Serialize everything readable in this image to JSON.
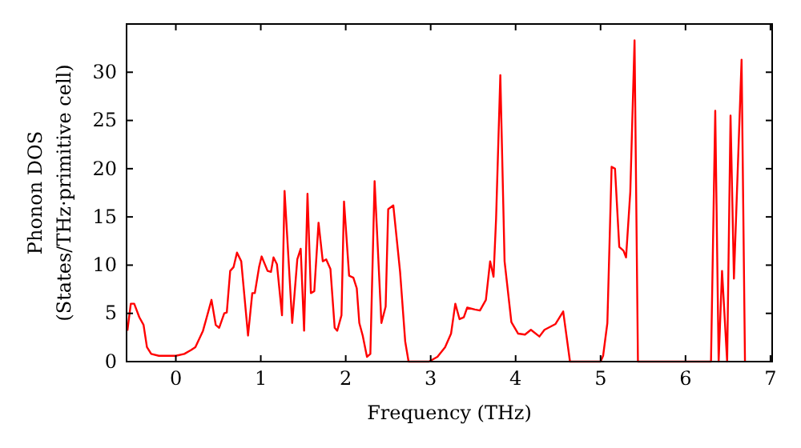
{
  "chart_data": {
    "type": "line",
    "xlabel": "Frequency (THz)",
    "ylabel": "Phonon DOS\n(States/THz·primitive cell)",
    "xlim": [
      -0.58,
      7.02
    ],
    "ylim": [
      0,
      35
    ],
    "xticks": [
      0,
      1,
      2,
      3,
      4,
      5,
      6,
      7
    ],
    "yticks": [
      0,
      5,
      10,
      15,
      20,
      25,
      30
    ],
    "grid": false,
    "marker": "none",
    "line_style": "solid",
    "series": [
      {
        "color": "#ff0000",
        "x": [
          -0.57,
          -0.53,
          -0.49,
          -0.43,
          -0.38,
          -0.34,
          -0.29,
          -0.2,
          -0.1,
          0.0,
          0.1,
          0.18,
          0.23,
          0.32,
          0.42,
          0.47,
          0.51,
          0.57,
          0.6,
          0.64,
          0.68,
          0.72,
          0.77,
          0.85,
          0.9,
          0.93,
          0.98,
          1.01,
          1.08,
          1.12,
          1.15,
          1.19,
          1.25,
          1.28,
          1.37,
          1.43,
          1.47,
          1.51,
          1.55,
          1.59,
          1.63,
          1.68,
          1.73,
          1.77,
          1.82,
          1.87,
          1.9,
          1.95,
          1.98,
          2.04,
          2.09,
          2.13,
          2.16,
          2.2,
          2.25,
          2.29,
          2.34,
          2.42,
          2.47,
          2.5,
          2.56,
          2.64,
          2.7,
          2.74,
          2.98,
          3.08,
          3.17,
          3.24,
          3.29,
          3.34,
          3.39,
          3.43,
          3.52,
          3.58,
          3.65,
          3.7,
          3.74,
          3.77,
          3.82,
          3.87,
          3.95,
          4.03,
          4.11,
          4.18,
          4.28,
          4.34,
          4.47,
          4.56,
          4.64,
          5.0,
          5.03,
          5.08,
          5.13,
          5.17,
          5.22,
          5.27,
          5.3,
          5.35,
          5.4,
          5.44,
          6.3,
          6.35,
          6.39,
          6.43,
          6.49,
          6.53,
          6.57,
          6.66,
          6.7
        ],
        "values": [
          3.2,
          6.0,
          6.0,
          4.6,
          3.8,
          1.5,
          0.8,
          0.6,
          0.6,
          0.6,
          0.8,
          1.2,
          1.5,
          3.2,
          6.4,
          3.8,
          3.5,
          5.0,
          5.1,
          9.4,
          9.8,
          11.3,
          10.4,
          2.7,
          7.1,
          7.1,
          9.8,
          10.9,
          9.4,
          9.3,
          10.8,
          10.1,
          4.8,
          17.7,
          4.0,
          10.6,
          11.7,
          3.2,
          17.4,
          7.1,
          7.3,
          14.4,
          10.4,
          10.6,
          9.6,
          3.5,
          3.2,
          4.8,
          16.6,
          8.9,
          8.7,
          7.6,
          4.0,
          2.7,
          0.5,
          0.8,
          18.7,
          4.0,
          5.7,
          15.8,
          16.2,
          9.3,
          2.1,
          0,
          0,
          0.5,
          1.5,
          2.9,
          6.0,
          4.4,
          4.6,
          5.6,
          5.4,
          5.3,
          6.4,
          10.4,
          8.8,
          14.8,
          29.7,
          10.4,
          4.1,
          2.9,
          2.8,
          3.3,
          2.6,
          3.3,
          3.9,
          5.2,
          0,
          0,
          0.6,
          4.0,
          20.2,
          20.0,
          11.9,
          11.5,
          10.8,
          17.6,
          33.3,
          0,
          0,
          26.0,
          0,
          9.4,
          0,
          25.5,
          8.6,
          31.3,
          0
        ]
      }
    ]
  }
}
